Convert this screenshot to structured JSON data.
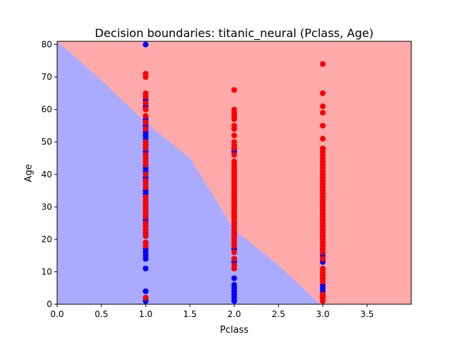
{
  "chart_data": {
    "type": "scatter",
    "title": "Decision boundaries: titanic_neural (Pclass, Age)",
    "xlabel": "Pclass",
    "ylabel": "Age",
    "xlim": [
      0.0,
      4.0
    ],
    "ylim": [
      0,
      81
    ],
    "xticks": [
      "0.0",
      "0.5",
      "1.0",
      "1.5",
      "2.0",
      "2.5",
      "3.0",
      "3.5"
    ],
    "yticks": [
      "0",
      "10",
      "20",
      "30",
      "40",
      "50",
      "60",
      "70",
      "80"
    ],
    "grid": false,
    "legend": "none",
    "region_colors": {
      "class_0": "#aaaaff",
      "class_1": "#ffaaaa"
    },
    "point_colors": {
      "class_0": "#0000ff",
      "class_1": "#ff0000"
    },
    "decision_boundary": {
      "x": [
        0.0,
        0.5,
        1.0,
        1.5,
        2.0,
        2.5,
        2.97
      ],
      "y": [
        81,
        69,
        56,
        45,
        23,
        12,
        0
      ]
    },
    "series": [
      {
        "x_value": 1,
        "blue": [
          80,
          63,
          62,
          61,
          60,
          57,
          56,
          55,
          54,
          53,
          52,
          51,
          50,
          49,
          48,
          47,
          46,
          45,
          44,
          43,
          42,
          41,
          40,
          39,
          38,
          36,
          35,
          34,
          33,
          32,
          31,
          30,
          29,
          28,
          27,
          26,
          25,
          24,
          23,
          22,
          21,
          19,
          17,
          16,
          15,
          14,
          11,
          4,
          2,
          1
        ],
        "red": [
          71,
          70,
          65,
          64,
          62,
          60,
          58,
          56,
          54,
          50,
          49,
          48,
          46,
          45,
          44,
          43,
          40,
          38,
          37,
          36,
          33,
          32,
          31,
          30,
          29,
          28,
          27,
          25,
          24,
          23,
          22,
          21,
          19,
          18,
          2
        ]
      },
      {
        "x_value": 2,
        "blue": [
          48,
          47,
          42,
          40,
          39,
          38,
          36,
          34,
          33,
          32,
          31,
          30,
          29,
          28,
          27,
          25,
          24,
          23,
          22,
          21,
          19,
          18,
          17,
          14,
          13,
          8,
          6,
          5,
          4,
          3,
          2,
          1
        ],
        "red": [
          66,
          60,
          59,
          58,
          57,
          55,
          54,
          52,
          50,
          49,
          48,
          46,
          44,
          43,
          42,
          41,
          40,
          39,
          38,
          37,
          36,
          35,
          34,
          33,
          32,
          31,
          30,
          29,
          28,
          27,
          26,
          25,
          24,
          23,
          22,
          21,
          20,
          19,
          18,
          16,
          14,
          12,
          11
        ]
      },
      {
        "x_value": 3,
        "blue": [
          44,
          42,
          40,
          39,
          38,
          37,
          36,
          35,
          34,
          33,
          32,
          31,
          30,
          29,
          28,
          27,
          26,
          25,
          24,
          23,
          22,
          21,
          20,
          19,
          18,
          17,
          16,
          15,
          14,
          13,
          9,
          8,
          6,
          5,
          4,
          3,
          2,
          1
        ],
        "red": [
          74,
          65,
          61,
          59,
          55,
          51,
          48,
          47,
          46,
          45,
          44,
          43,
          42,
          41,
          40,
          39,
          38,
          37,
          36,
          35,
          34,
          33,
          32,
          31,
          30,
          29,
          28,
          27,
          26,
          25,
          24,
          23,
          22,
          21,
          20,
          19,
          18,
          17,
          16,
          14,
          11,
          10,
          9,
          8,
          7,
          3,
          2,
          1
        ]
      }
    ]
  }
}
